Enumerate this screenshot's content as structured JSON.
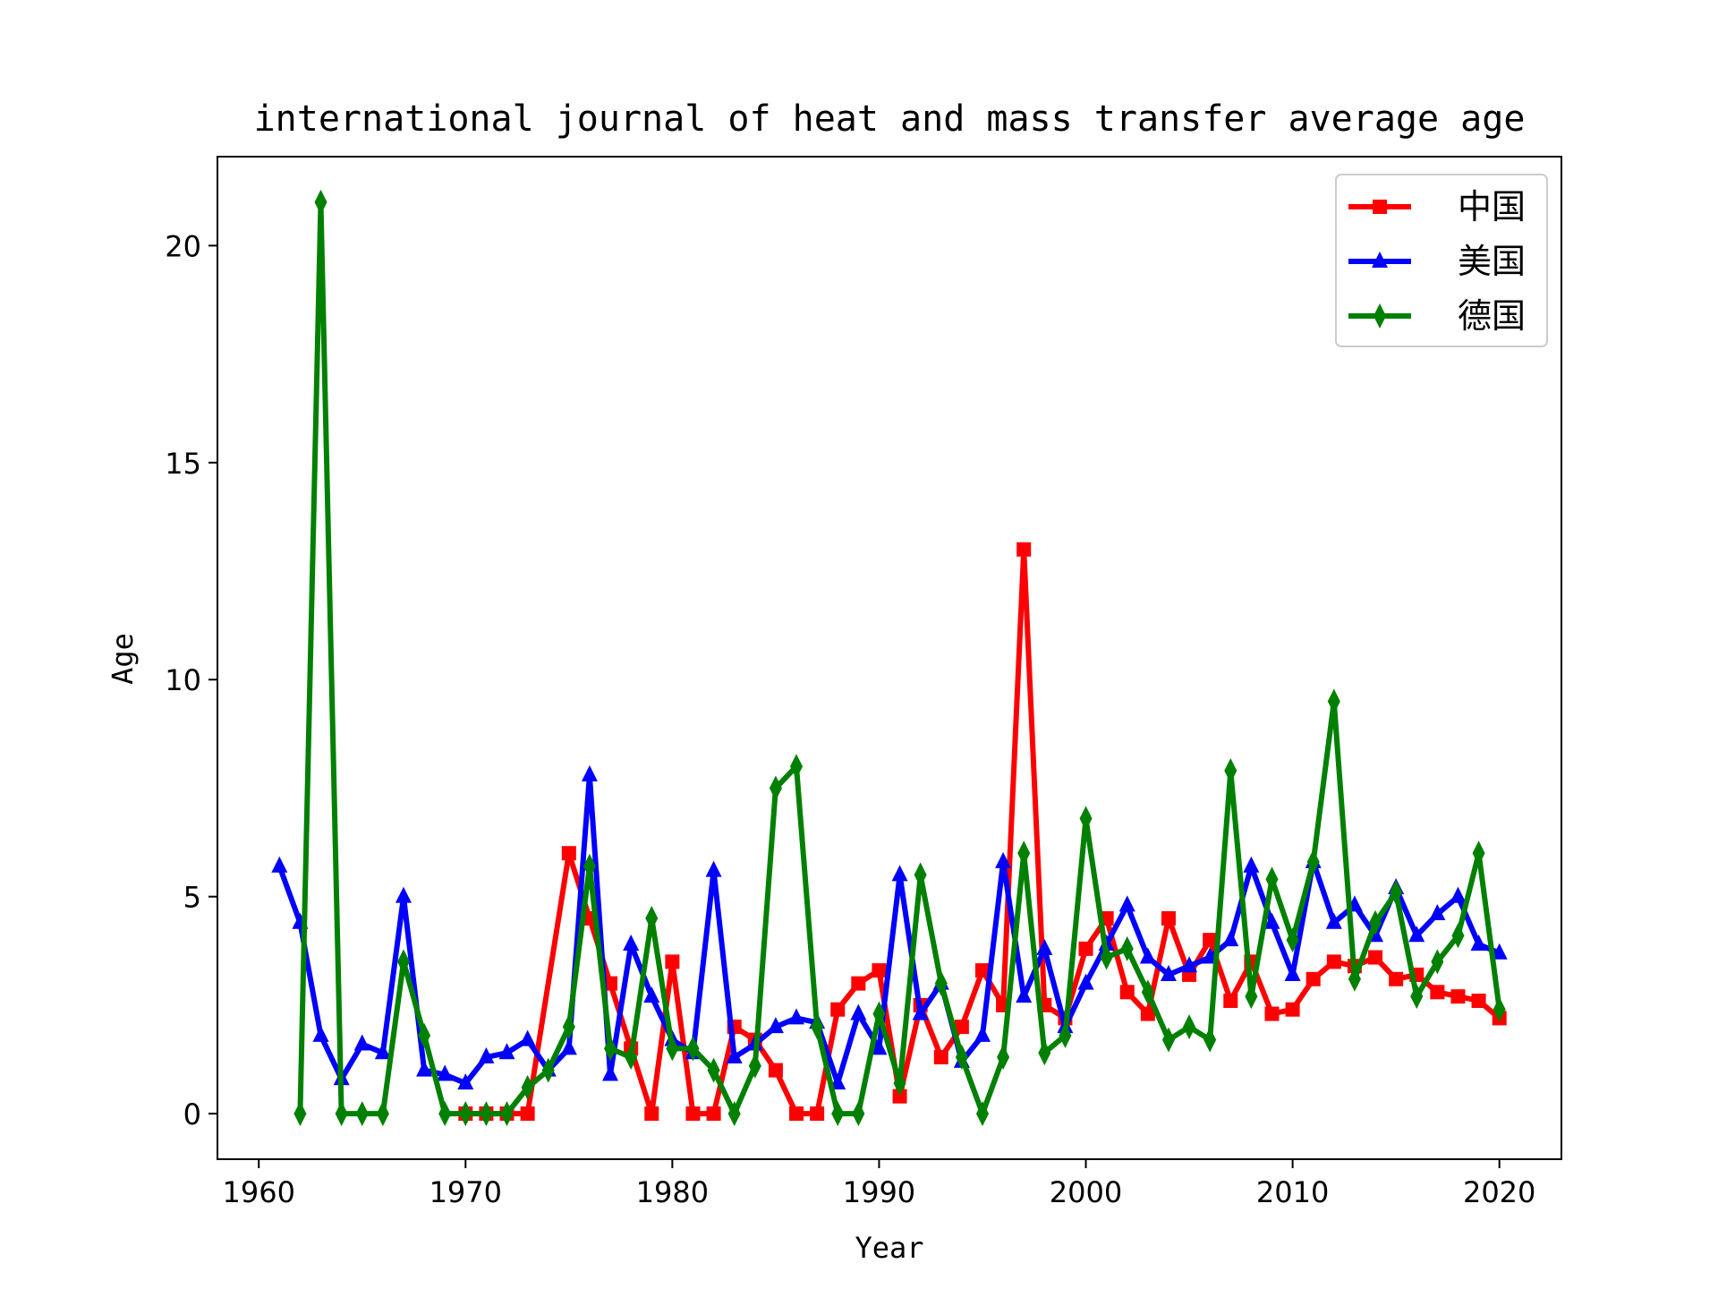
{
  "chart_data": {
    "type": "line",
    "title": "international journal of heat and mass transfer average age",
    "xlabel": "Year",
    "ylabel": "Age",
    "xlim": [
      1958,
      2023
    ],
    "ylim": [
      -1.05,
      22.05
    ],
    "xticks": [
      1960,
      1970,
      1980,
      1990,
      2000,
      2010,
      2020
    ],
    "yticks": [
      0,
      5,
      10,
      15,
      20
    ],
    "grid": false,
    "legend_position": "top-right",
    "series": [
      {
        "name": "中国",
        "color": "#ff0000",
        "marker": "square",
        "x": [
          1970,
          1971,
          1972,
          1973,
          1975,
          1976,
          1977,
          1978,
          1979,
          1980,
          1981,
          1982,
          1983,
          1984,
          1985,
          1986,
          1987,
          1988,
          1989,
          1990,
          1991,
          1992,
          1993,
          1994,
          1995,
          1996,
          1997,
          1998,
          1999,
          2000,
          2001,
          2002,
          2003,
          2004,
          2005,
          2006,
          2007,
          2008,
          2009,
          2010,
          2011,
          2012,
          2013,
          2014,
          2015,
          2016,
          2017,
          2018,
          2019,
          2020
        ],
        "y": [
          0,
          0,
          0,
          0,
          6.0,
          4.5,
          3.0,
          1.5,
          0,
          3.5,
          0,
          0,
          2.0,
          1.7,
          1.0,
          0,
          0,
          2.4,
          3.0,
          3.3,
          0.4,
          2.5,
          1.3,
          2.0,
          3.3,
          2.5,
          13.0,
          2.5,
          2.2,
          3.8,
          4.5,
          2.8,
          2.3,
          4.5,
          3.2,
          4.0,
          2.6,
          3.5,
          2.3,
          2.4,
          3.1,
          3.5,
          3.4,
          3.6,
          3.1,
          3.2,
          2.8,
          2.7,
          2.6,
          2.2
        ]
      },
      {
        "name": "美国",
        "color": "#0000ff",
        "marker": "triangle",
        "x": [
          1961,
          1962,
          1963,
          1964,
          1965,
          1966,
          1967,
          1968,
          1969,
          1970,
          1971,
          1972,
          1973,
          1974,
          1975,
          1976,
          1977,
          1978,
          1979,
          1980,
          1981,
          1982,
          1983,
          1984,
          1985,
          1986,
          1987,
          1988,
          1989,
          1990,
          1991,
          1992,
          1993,
          1994,
          1995,
          1996,
          1997,
          1998,
          1999,
          2000,
          2001,
          2002,
          2003,
          2004,
          2005,
          2006,
          2007,
          2008,
          2009,
          2010,
          2011,
          2012,
          2013,
          2014,
          2015,
          2016,
          2017,
          2018,
          2019,
          2020
        ],
        "y": [
          5.7,
          4.4,
          1.8,
          0.8,
          1.6,
          1.4,
          5.0,
          1.0,
          0.9,
          0.7,
          1.3,
          1.4,
          1.7,
          1.0,
          1.5,
          7.8,
          0.9,
          3.9,
          2.7,
          1.7,
          1.4,
          5.6,
          1.3,
          1.6,
          2.0,
          2.2,
          2.1,
          0.7,
          2.3,
          1.5,
          5.5,
          2.3,
          3.0,
          1.2,
          1.8,
          5.8,
          2.7,
          3.8,
          2.0,
          3.0,
          3.9,
          4.8,
          3.6,
          3.2,
          3.4,
          3.6,
          4.0,
          5.7,
          4.4,
          3.2,
          5.8,
          4.4,
          4.8,
          4.1,
          5.2,
          4.1,
          4.6,
          5.0,
          3.9,
          3.7
        ]
      },
      {
        "name": "德国",
        "color": "#008000",
        "marker": "thin_diamond",
        "x": [
          1962,
          1963,
          1964,
          1965,
          1966,
          1967,
          1968,
          1969,
          1970,
          1971,
          1972,
          1973,
          1974,
          1975,
          1976,
          1977,
          1978,
          1979,
          1980,
          1981,
          1982,
          1983,
          1984,
          1985,
          1986,
          1987,
          1988,
          1989,
          1990,
          1991,
          1992,
          1993,
          1994,
          1995,
          1996,
          1997,
          1998,
          1999,
          2000,
          2001,
          2002,
          2003,
          2004,
          2005,
          2006,
          2007,
          2008,
          2009,
          2010,
          2011,
          2012,
          2013,
          2014,
          2015,
          2016,
          2017,
          2018,
          2019,
          2020
        ],
        "y": [
          0,
          21.0,
          0,
          0,
          0,
          3.5,
          1.8,
          0,
          0,
          0,
          0,
          0.6,
          1.0,
          2.0,
          5.7,
          1.5,
          1.3,
          4.5,
          1.5,
          1.5,
          1.0,
          0,
          1.1,
          7.5,
          8.0,
          2.0,
          0,
          0,
          2.3,
          0.7,
          5.5,
          3.0,
          1.3,
          0,
          1.3,
          6.0,
          1.4,
          1.8,
          6.8,
          3.6,
          3.8,
          2.8,
          1.7,
          2.0,
          1.7,
          7.9,
          2.7,
          5.4,
          4.0,
          5.8,
          9.5,
          3.1,
          4.4,
          5.1,
          2.7,
          3.5,
          4.1,
          6.0,
          2.4
        ]
      }
    ]
  }
}
